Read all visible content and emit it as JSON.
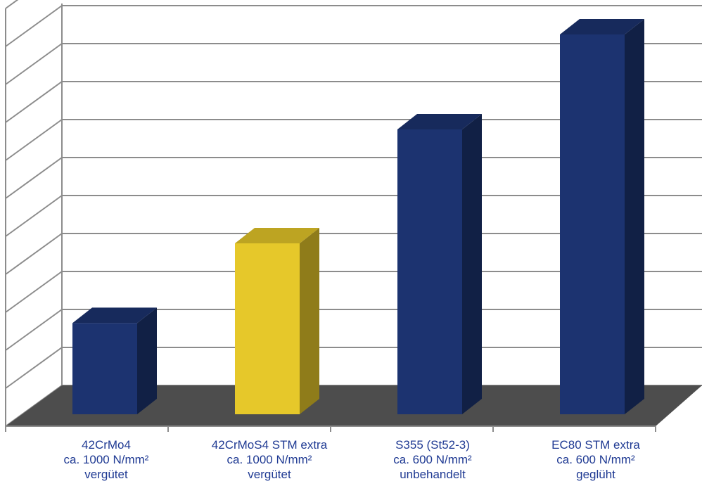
{
  "chart_data": {
    "type": "bar",
    "title": "",
    "xlabel": "",
    "ylabel": "",
    "ylim": [
      0,
      10
    ],
    "grid": true,
    "legend": "none",
    "three_d": true,
    "categories": [
      [
        "42CrMo4",
        "ca. 1000 N/mm²",
        "vergütet"
      ],
      [
        "42CrMoS4 STM extra",
        "ca. 1000 N/mm²",
        "vergütet"
      ],
      [
        "S355 (St52-3)",
        "ca. 600 N/mm²",
        "unbehandelt"
      ],
      [
        "EC80 STM extra",
        "ca. 600 N/mm²",
        "geglüht"
      ]
    ],
    "values": [
      2.4,
      4.5,
      7.5,
      10
    ],
    "bar_colors": [
      "#1c3370",
      "#e6c82a",
      "#1c3370",
      "#1c3370"
    ],
    "wall_color": "#ffffff",
    "floor_color": "#4d4d4d",
    "grid_color": "#8c8c8c"
  }
}
